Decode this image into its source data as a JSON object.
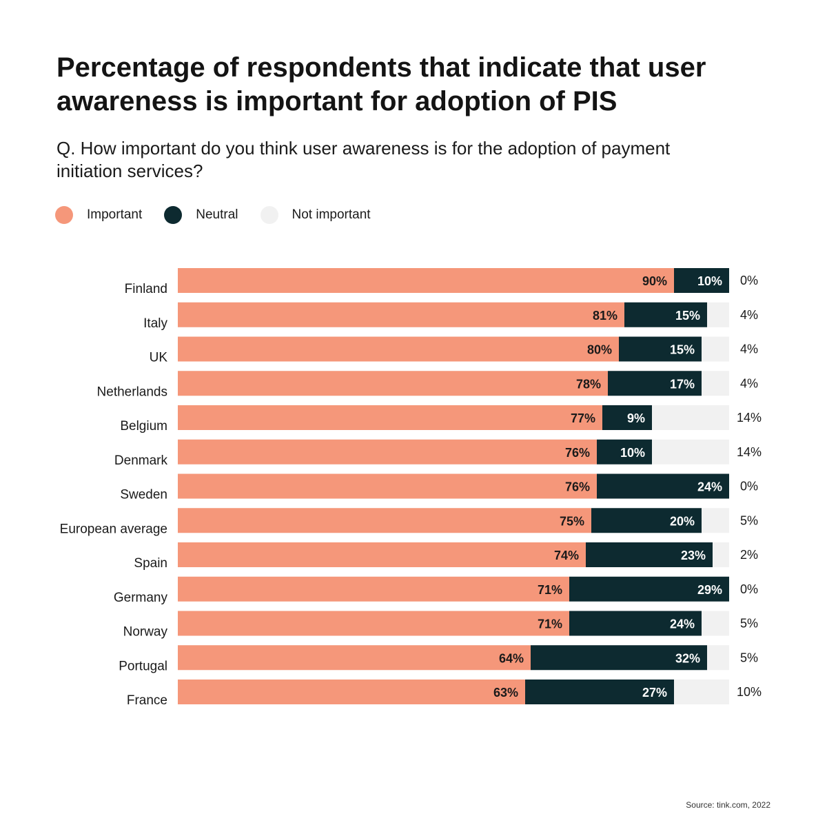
{
  "header": {
    "title": "Percentage of respondents that indicate that user awareness is important for adoption of PIS",
    "subtitle": "Q. How important do you think user awareness is for the adoption of payment initiation services?"
  },
  "legend": [
    {
      "label": "Important",
      "color": "#f5977a"
    },
    {
      "label": "Neutral",
      "color": "#0d2a30"
    },
    {
      "label": "Not important",
      "color": "#f1f1f1"
    }
  ],
  "footer": {
    "source": "Source: tink.com, 2022"
  },
  "chart_data": {
    "type": "bar",
    "orientation": "horizontal",
    "stacked": true,
    "categories": [
      "Finland",
      "Italy",
      "UK",
      "Netherlands",
      "Belgium",
      "Denmark",
      "Sweden",
      "European average",
      "Spain",
      "Germany",
      "Norway",
      "Portugal",
      "France"
    ],
    "series": [
      {
        "name": "Important",
        "color": "#f5977a",
        "values": [
          90,
          81,
          80,
          78,
          77,
          76,
          76,
          75,
          74,
          71,
          71,
          64,
          63
        ]
      },
      {
        "name": "Neutral",
        "color": "#0d2a30",
        "values": [
          10,
          15,
          15,
          17,
          9,
          10,
          24,
          20,
          23,
          29,
          24,
          32,
          27
        ]
      },
      {
        "name": "Not important",
        "color": "#f1f1f1",
        "values": [
          0,
          4,
          4,
          4,
          14,
          14,
          0,
          5,
          2,
          0,
          5,
          5,
          10
        ]
      }
    ],
    "value_suffix": "%",
    "xlim": [
      0,
      100
    ],
    "legend_position": "top-left",
    "grid": false
  }
}
